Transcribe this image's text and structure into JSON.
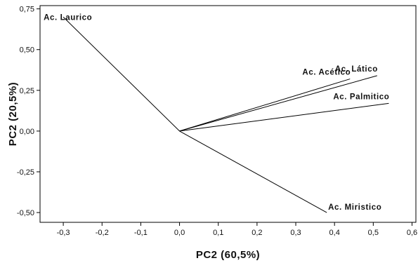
{
  "chart_data": {
    "type": "line",
    "xlabel": "PC2  (60,5%)",
    "ylabel": "PC2  (20,5%)",
    "xlim": [
      -0.36,
      0.61
    ],
    "ylim": [
      -0.56,
      0.77
    ],
    "x_ticks": [
      -0.3,
      -0.2,
      -0.1,
      0.0,
      0.1,
      0.2,
      0.3,
      0.4,
      0.5,
      0.6
    ],
    "x_tick_labels": [
      "-0,3",
      "-0,2",
      "-0,1",
      "0,0",
      "0,1",
      "0,2",
      "0,3",
      "0,4",
      "0,5",
      "0,6"
    ],
    "y_ticks": [
      0.75,
      0.5,
      0.25,
      0.0,
      -0.25,
      -0.5
    ],
    "y_tick_labels": [
      "0,75",
      "0,50",
      "0,25",
      "0,00",
      "-0,25",
      "-0,50"
    ],
    "grid": false,
    "legend": "none",
    "line_color": "#000000",
    "origin": {
      "x": 0.0,
      "y": 0.0
    },
    "vectors": [
      {
        "name": "Ac. Laurico",
        "x": -0.3,
        "y": 0.7,
        "label_anchor": "start",
        "label_side": "left"
      },
      {
        "name": "Ac. Acético",
        "x": 0.44,
        "y": 0.32,
        "label_anchor": "end",
        "label_side": "above"
      },
      {
        "name": "Ac. Lático",
        "x": 0.51,
        "y": 0.34,
        "label_anchor": "end",
        "label_side": "above"
      },
      {
        "name": "Ac. Palmitico",
        "x": 0.54,
        "y": 0.17,
        "label_anchor": "end",
        "label_side": "above"
      },
      {
        "name": "Ac. Miristico",
        "x": 0.38,
        "y": -0.5,
        "label_anchor": "start",
        "label_side": "right"
      }
    ]
  }
}
